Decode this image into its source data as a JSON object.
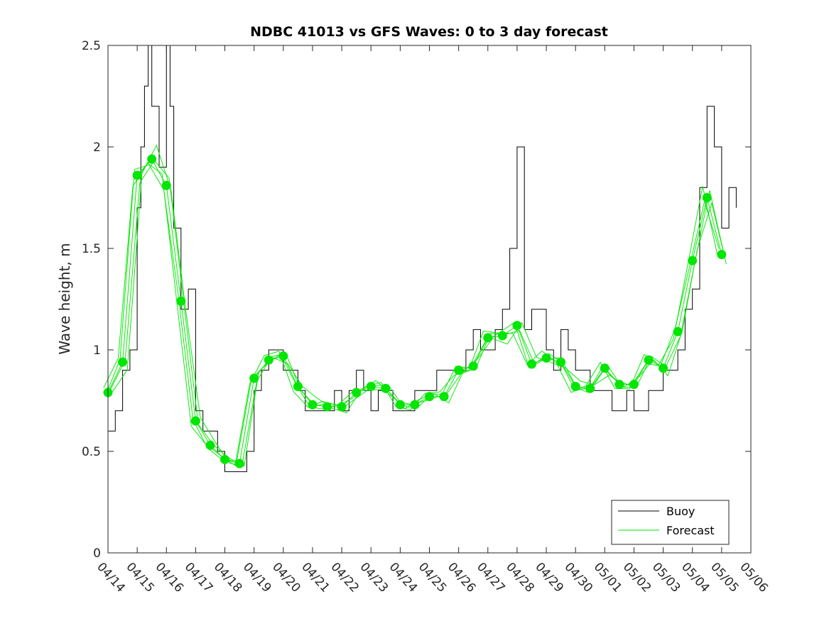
{
  "chart_data": {
    "type": "line",
    "title": "NDBC 41013 vs GFS Waves: 0 to 3 day forecast",
    "ylabel": "Wave height, m",
    "xlabel": "",
    "xlim": [
      "04/14",
      "05/06"
    ],
    "ylim": [
      0,
      2.5
    ],
    "yticks": [
      "0",
      "0.5",
      "1",
      "1.5",
      "2",
      "2.5"
    ],
    "xticks": [
      "04/14",
      "04/15",
      "04/16",
      "04/17",
      "04/18",
      "04/19",
      "04/20",
      "04/21",
      "04/22",
      "04/23",
      "04/24",
      "04/25",
      "04/26",
      "04/27",
      "04/28",
      "04/29",
      "04/30",
      "05/01",
      "05/02",
      "05/03",
      "05/04",
      "05/05",
      "05/06"
    ],
    "grid": false,
    "legend": {
      "placement": "bottom-right",
      "entries": [
        "Buoy",
        "Forecast"
      ]
    },
    "colors": {
      "buoy": "#000000",
      "forecast": "#00e600",
      "axis": "#262626"
    },
    "series": [
      {
        "name": "Buoy",
        "x": [
          "04/14 00:00",
          "04/14 06:00",
          "04/14 12:00",
          "04/14 18:00",
          "04/15 00:00",
          "04/15 03:00",
          "04/15 06:00",
          "04/15 09:00",
          "04/15 12:00",
          "04/15 18:00",
          "04/16 00:00",
          "04/16 03:00",
          "04/16 06:00",
          "04/16 12:00",
          "04/16 18:00",
          "04/17 00:00",
          "04/17 06:00",
          "04/17 12:00",
          "04/17 18:00",
          "04/18 00:00",
          "04/18 06:00",
          "04/18 12:00",
          "04/18 18:00",
          "04/19 00:00",
          "04/19 06:00",
          "04/19 12:00",
          "04/19 18:00",
          "04/20 00:00",
          "04/20 06:00",
          "04/20 12:00",
          "04/20 18:00",
          "04/21 00:00",
          "04/21 06:00",
          "04/21 12:00",
          "04/21 18:00",
          "04/22 00:00",
          "04/22 06:00",
          "04/22 12:00",
          "04/22 18:00",
          "04/23 00:00",
          "04/23 06:00",
          "04/23 12:00",
          "04/23 18:00",
          "04/24 00:00",
          "04/24 06:00",
          "04/24 12:00",
          "04/24 18:00",
          "04/25 00:00",
          "04/25 06:00",
          "04/25 12:00",
          "04/25 18:00",
          "04/26 00:00",
          "04/26 06:00",
          "04/26 12:00",
          "04/26 18:00",
          "04/27 00:00",
          "04/27 06:00",
          "04/27 12:00",
          "04/27 18:00",
          "04/28 00:00",
          "04/28 06:00",
          "04/28 12:00",
          "04/28 18:00",
          "04/29 00:00",
          "04/29 06:00",
          "04/29 12:00",
          "04/29 18:00",
          "04/30 00:00",
          "04/30 06:00",
          "04/30 12:00",
          "04/30 18:00",
          "05/01 00:00",
          "05/01 06:00",
          "05/01 12:00",
          "05/01 18:00",
          "05/02 00:00",
          "05/02 06:00",
          "05/02 12:00",
          "05/02 18:00",
          "05/03 00:00",
          "05/03 06:00",
          "05/03 12:00",
          "05/03 18:00",
          "05/04 00:00",
          "05/04 06:00",
          "05/04 12:00",
          "05/04 18:00",
          "05/05 00:00",
          "05/05 06:00",
          "05/05 12:00"
        ],
        "values": [
          0.6,
          0.7,
          0.9,
          1.0,
          1.7,
          2.0,
          2.3,
          2.5,
          2.2,
          1.9,
          2.5,
          2.2,
          1.6,
          1.2,
          1.3,
          0.7,
          0.6,
          0.6,
          0.5,
          0.4,
          0.4,
          0.4,
          0.5,
          0.8,
          0.9,
          1.0,
          1.0,
          0.9,
          0.9,
          0.8,
          0.7,
          0.7,
          0.7,
          0.7,
          0.8,
          0.7,
          0.8,
          0.9,
          0.8,
          0.7,
          0.8,
          0.8,
          0.7,
          0.7,
          0.7,
          0.8,
          0.8,
          0.8,
          0.9,
          0.9,
          0.9,
          0.9,
          1.0,
          1.1,
          1.0,
          1.0,
          1.1,
          1.2,
          1.5,
          2.0,
          1.1,
          1.2,
          1.2,
          1.0,
          0.9,
          1.1,
          1.0,
          0.9,
          0.9,
          0.8,
          0.8,
          0.8,
          0.7,
          0.7,
          0.8,
          0.7,
          0.7,
          0.8,
          0.8,
          0.9,
          0.9,
          1.0,
          1.2,
          1.3,
          1.8,
          2.2,
          2.0,
          1.6,
          1.8,
          1.7
        ]
      },
      {
        "name": "Forecast",
        "x": [
          "04/14 00:00",
          "04/14 12:00",
          "04/15 00:00",
          "04/15 12:00",
          "04/16 00:00",
          "04/16 12:00",
          "04/17 00:00",
          "04/17 12:00",
          "04/18 00:00",
          "04/18 12:00",
          "04/19 00:00",
          "04/19 12:00",
          "04/20 00:00",
          "04/20 12:00",
          "04/21 00:00",
          "04/21 12:00",
          "04/22 00:00",
          "04/22 12:00",
          "04/23 00:00",
          "04/23 12:00",
          "04/24 00:00",
          "04/24 12:00",
          "04/25 00:00",
          "04/25 12:00",
          "04/26 00:00",
          "04/26 12:00",
          "04/27 00:00",
          "04/27 12:00",
          "04/28 00:00",
          "04/28 12:00",
          "04/29 00:00",
          "04/29 12:00",
          "04/30 00:00",
          "04/30 12:00",
          "05/01 00:00",
          "05/01 12:00",
          "05/02 00:00",
          "05/02 12:00",
          "05/03 00:00",
          "05/03 12:00",
          "05/04 00:00",
          "05/04 12:00",
          "05/05 00:00"
        ],
        "values": [
          0.79,
          0.94,
          1.86,
          1.94,
          1.81,
          1.24,
          0.65,
          0.53,
          0.46,
          0.44,
          0.86,
          0.95,
          0.97,
          0.82,
          0.73,
          0.72,
          0.72,
          0.79,
          0.82,
          0.81,
          0.73,
          0.73,
          0.77,
          0.77,
          0.9,
          0.92,
          1.06,
          1.07,
          1.12,
          0.93,
          0.96,
          0.94,
          0.82,
          0.81,
          0.91,
          0.83,
          0.83,
          0.95,
          0.91,
          1.09,
          1.44,
          1.75,
          1.47
        ]
      }
    ]
  }
}
